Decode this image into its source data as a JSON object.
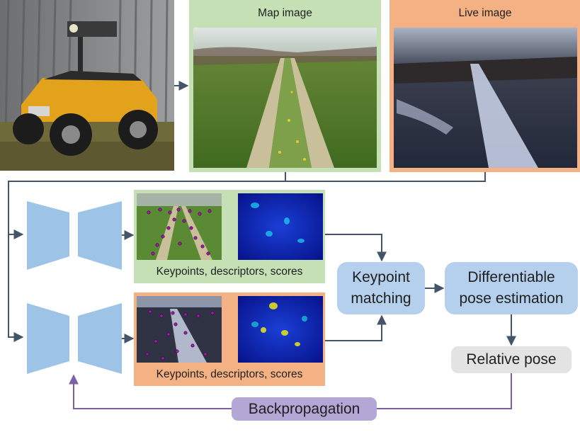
{
  "map_image": {
    "title": "Map image"
  },
  "live_image": {
    "title": "Live image"
  },
  "features": {
    "map_caption": "Keypoints, descriptors, scores",
    "live_caption": "Keypoints, descriptors, scores"
  },
  "nodes": {
    "keypoint_matching": "Keypoint\nmatching",
    "pose_estimation": "Differentiable\npose estimation",
    "relative_pose": "Relative pose",
    "backpropagation": "Backpropagation"
  },
  "colors": {
    "green_frame": "#c5e0b4",
    "orange_frame": "#f4b183",
    "blue_node": "#b4d0ec",
    "network": "#9dc3e6",
    "grey_node": "#e3e3e3",
    "purple": "#b4a7d6",
    "purple_line": "#7d5fa6",
    "connector": "#44546a"
  }
}
